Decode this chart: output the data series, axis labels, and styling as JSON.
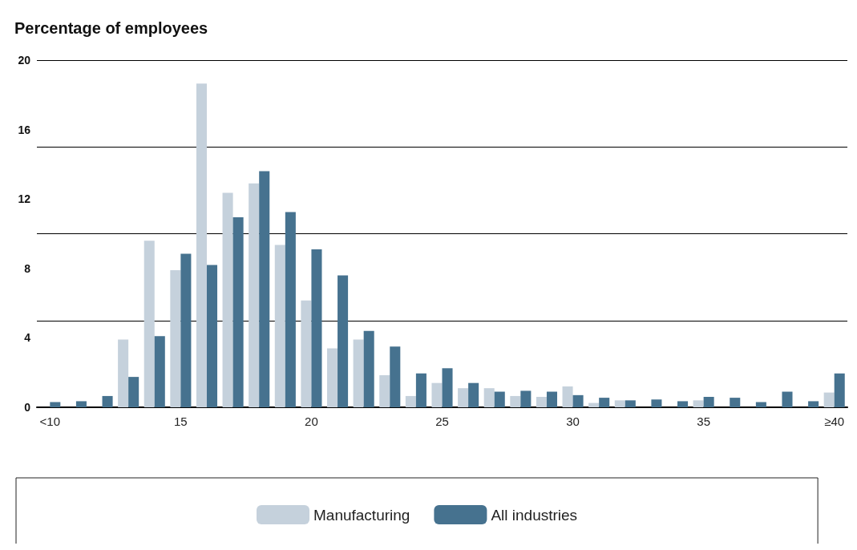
{
  "chart_data": {
    "type": "bar",
    "ylabel": "Percentage of employees",
    "categories": [
      "<10",
      null,
      null,
      null,
      null,
      "15",
      null,
      null,
      null,
      null,
      "20",
      null,
      null,
      null,
      null,
      "25",
      null,
      null,
      null,
      null,
      "30",
      null,
      null,
      null,
      null,
      "35",
      null,
      null,
      null,
      null,
      "≥40"
    ],
    "series": [
      {
        "name": "Manufacturing",
        "color": "#c5d1dc",
        "values": [
          0,
          0,
          0,
          3.9,
          9.6,
          7.9,
          18.65,
          12.35,
          12.9,
          9.35,
          6.15,
          3.4,
          3.9,
          1.85,
          0.65,
          1.4,
          1.1,
          1.1,
          0.65,
          0.6,
          1.2,
          0.25,
          0.4,
          0,
          0,
          0.4,
          0,
          0,
          0,
          0,
          0.85
        ]
      },
      {
        "name": "All industries",
        "color": "#46728f",
        "values": [
          0.3,
          0.35,
          0.65,
          1.75,
          4.1,
          8.85,
          8.2,
          10.95,
          13.6,
          11.25,
          9.1,
          7.6,
          4.4,
          3.5,
          1.95,
          2.25,
          1.4,
          0.9,
          0.95,
          0.9,
          0.7,
          0.55,
          0.4,
          0.45,
          0.35,
          0.6,
          0.55,
          0.3,
          0.9,
          0.35,
          1.95
        ]
      }
    ],
    "ylim": [
      0,
      20
    ],
    "yticks": [
      0,
      4,
      8,
      12,
      16,
      20
    ],
    "grid": "y",
    "legend": "bottom"
  }
}
